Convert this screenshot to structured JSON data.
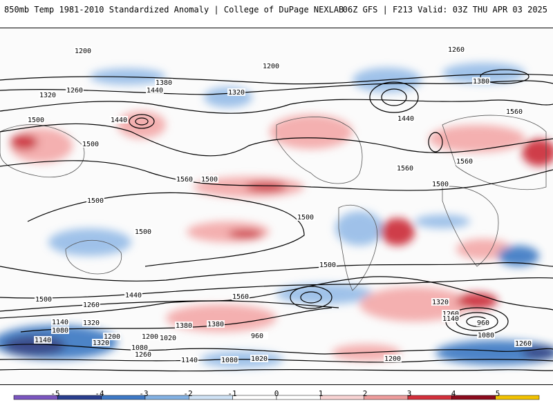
{
  "header": {
    "title": "850mb Temp 1981-2010 Standardized Anomaly | College of DuPage NEXLAB",
    "run_info": "06Z GFS | F213 Valid: 03Z THU APR 03 2025"
  },
  "map": {
    "contour_labels": [
      "1200",
      "1200",
      "1260",
      "1260",
      "1320",
      "1320",
      "1380",
      "1380",
      "1440",
      "1440",
      "1500",
      "1500",
      "1500",
      "1500",
      "1500",
      "1500",
      "1500",
      "1500",
      "1560",
      "1560",
      "1560",
      "1560",
      "1440",
      "1380",
      "1440",
      "1380",
      "1560",
      "1500",
      "1320",
      "1260",
      "1200",
      "1140",
      "1080",
      "1140",
      "1320",
      "1200",
      "1020",
      "1080",
      "960",
      "1020",
      "1140",
      "1080",
      "1260",
      "1200",
      "1260",
      "1320",
      "1140",
      "960",
      "1080",
      "1260"
    ],
    "colors": {
      "strong_cold": "#1f2f78",
      "cold": "#2f6fbf",
      "cool": "#8fb8e6",
      "near_normal": "#ffffff",
      "warm": "#f3a3a3",
      "hot": "#c81e2a",
      "strong_hot": "#6b0a18"
    }
  },
  "colorbar": {
    "ticks": [
      "-5",
      "-4",
      "-3",
      "-2",
      "-1",
      "0",
      "1",
      "2",
      "3",
      "4",
      "5"
    ],
    "segments": [
      "#7b56c0",
      "#2a3f8f",
      "#3e79c6",
      "#83b1e3",
      "#cfe2f5",
      "#ffffff",
      "#ffffff",
      "#f8d3d3",
      "#ee9c9c",
      "#d3303c",
      "#8c0c1e",
      "#f2c200"
    ]
  }
}
